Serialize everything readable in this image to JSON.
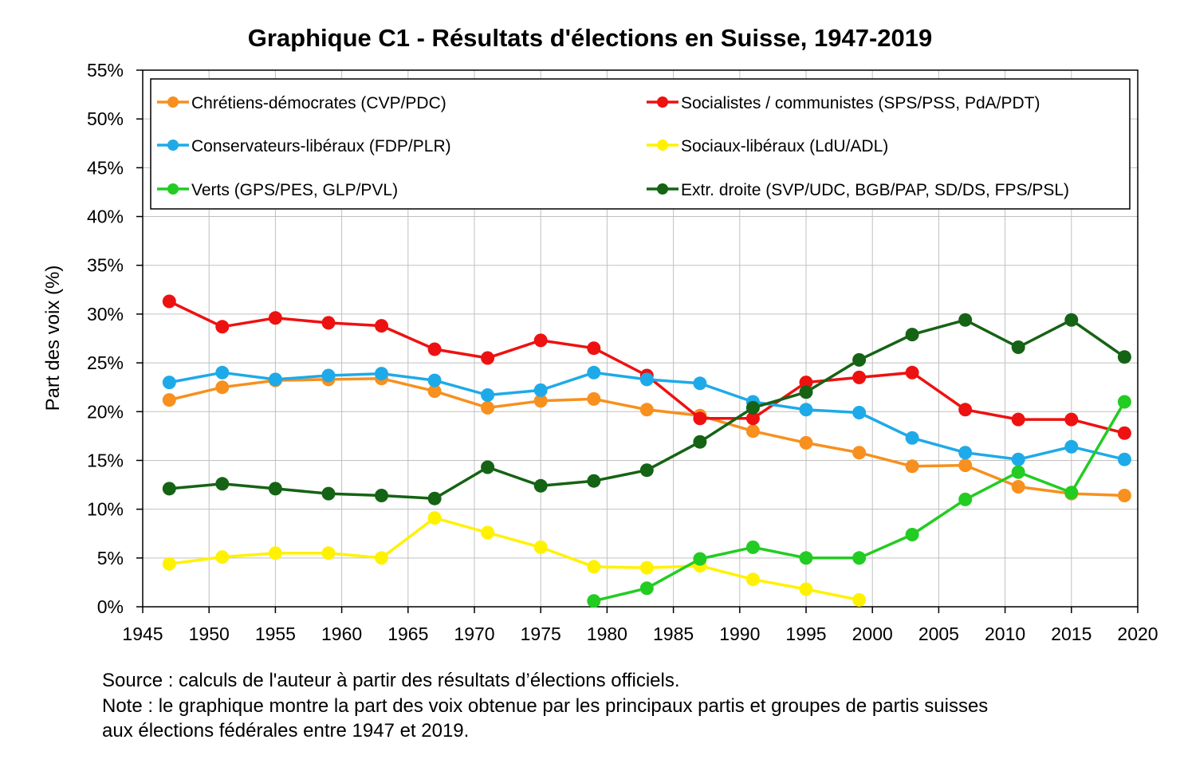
{
  "chart_data": {
    "type": "line",
    "title": "Graphique C1 - Résultats d'élections en Suisse, 1947-2019",
    "xlabel": "",
    "ylabel": "Part des voix (%)",
    "xlim": [
      1945,
      2020
    ],
    "ylim": [
      0,
      55
    ],
    "xticks": [
      1945,
      1950,
      1955,
      1960,
      1965,
      1970,
      1975,
      1980,
      1985,
      1990,
      1995,
      2000,
      2005,
      2010,
      2015,
      2020
    ],
    "yticks": [
      0,
      5,
      10,
      15,
      20,
      25,
      30,
      35,
      40,
      45,
      50,
      55
    ],
    "ytick_labels": [
      "0%",
      "5%",
      "10%",
      "15%",
      "20%",
      "25%",
      "30%",
      "35%",
      "40%",
      "45%",
      "50%",
      "55%"
    ],
    "grid": "both",
    "legend_position": "top-inside",
    "series": [
      {
        "name": "Chrétiens-démocrates (CVP/PDC)",
        "color": "#F7901E",
        "x": [
          1947,
          1951,
          1955,
          1959,
          1963,
          1967,
          1971,
          1975,
          1979,
          1983,
          1987,
          1991,
          1995,
          1999,
          2003,
          2007,
          2011,
          2015,
          2019
        ],
        "y": [
          21.2,
          22.5,
          23.2,
          23.3,
          23.4,
          22.1,
          20.4,
          21.1,
          21.3,
          20.2,
          19.6,
          18.0,
          16.8,
          15.8,
          14.4,
          14.5,
          12.3,
          11.6,
          11.4
        ]
      },
      {
        "name": "Socialistes / communistes (SPS/PSS, PdA/PDT)",
        "color": "#EE1111",
        "x": [
          1947,
          1951,
          1955,
          1959,
          1963,
          1967,
          1971,
          1975,
          1979,
          1983,
          1987,
          1991,
          1995,
          1999,
          2003,
          2007,
          2011,
          2015,
          2019
        ],
        "y": [
          31.3,
          28.7,
          29.6,
          29.1,
          28.8,
          26.4,
          25.5,
          27.3,
          26.5,
          23.7,
          19.3,
          19.3,
          23.0,
          23.5,
          24.0,
          20.2,
          19.2,
          19.2,
          17.8
        ]
      },
      {
        "name": "Conservateurs-libéraux (FDP/PLR)",
        "color": "#1EAAE8",
        "x": [
          1947,
          1951,
          1955,
          1959,
          1963,
          1967,
          1971,
          1975,
          1979,
          1983,
          1987,
          1991,
          1995,
          1999,
          2003,
          2007,
          2011,
          2015,
          2019
        ],
        "y": [
          23.0,
          24.0,
          23.3,
          23.7,
          23.9,
          23.2,
          21.7,
          22.2,
          24.0,
          23.3,
          22.9,
          21.0,
          20.2,
          19.9,
          17.3,
          15.8,
          15.1,
          16.4,
          15.1
        ]
      },
      {
        "name": "Sociaux-libéraux (LdU/ADL)",
        "color": "#FFF200",
        "x": [
          1947,
          1951,
          1955,
          1959,
          1963,
          1967,
          1971,
          1975,
          1979,
          1983,
          1987,
          1991,
          1995,
          1999
        ],
        "y": [
          4.4,
          5.1,
          5.5,
          5.5,
          5.0,
          9.1,
          7.6,
          6.1,
          4.1,
          4.0,
          4.2,
          2.8,
          1.8,
          0.7
        ]
      },
      {
        "name": "Verts (GPS/PES, GLP/PVL)",
        "color": "#22CC22",
        "x": [
          1979,
          1983,
          1987,
          1991,
          1995,
          1999,
          2003,
          2007,
          2011,
          2015,
          2019
        ],
        "y": [
          0.6,
          1.9,
          4.9,
          6.1,
          5.0,
          5.0,
          7.4,
          11.0,
          13.8,
          11.7,
          21.0
        ]
      },
      {
        "name": "Extr. droite (SVP/UDC, BGB/PAP, SD/DS, FPS/PSL)",
        "color": "#156315",
        "x": [
          1947,
          1951,
          1955,
          1959,
          1963,
          1967,
          1971,
          1975,
          1979,
          1983,
          1987,
          1991,
          1995,
          1999,
          2003,
          2007,
          2011,
          2015,
          2019
        ],
        "y": [
          12.1,
          12.6,
          12.1,
          11.6,
          11.4,
          11.1,
          14.3,
          12.4,
          12.9,
          14.0,
          16.9,
          20.4,
          22.0,
          25.3,
          27.9,
          29.4,
          26.6,
          29.4,
          25.6
        ]
      }
    ]
  },
  "footnote": {
    "source": "Source : calculs de l'auteur à partir des résultats d’élections officiels.",
    "note_line1": "Note : le graphique montre la part des voix obtenue par les principaux partis et groupes de partis suisses",
    "note_line2": "aux élections fédérales entre 1947 et 2019."
  }
}
